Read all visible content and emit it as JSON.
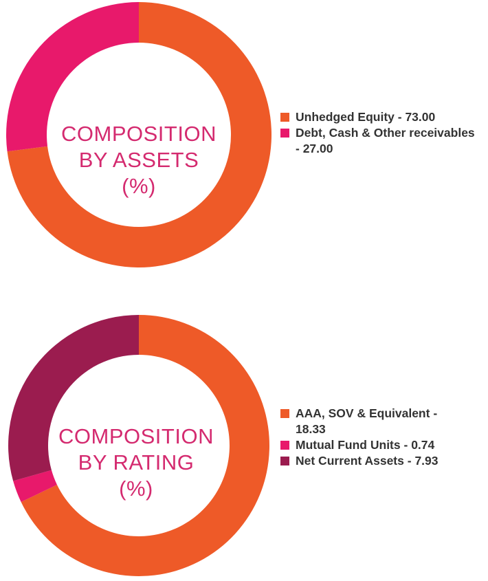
{
  "chart_data": [
    {
      "type": "pie",
      "title": "COMPOSITION BY ASSETS (%)",
      "title_lines": [
        "COMPOSITION",
        "BY ASSETS",
        "(%)"
      ],
      "slices": [
        {
          "label": "Unhedged Equity",
          "value": 73.0,
          "display": "73.00",
          "color": "#ee5a28"
        },
        {
          "label": "Debt, Cash & Other receivables",
          "value": 27.0,
          "display": "27.00",
          "color": "#e8196b"
        }
      ],
      "legend_position": "right"
    },
    {
      "type": "pie",
      "title": "COMPOSITION BY RATING (%)",
      "title_lines": [
        "COMPOSITION",
        "BY RATING",
        "(%)"
      ],
      "slices": [
        {
          "label": "AAA, SOV & Equivalent",
          "value": 18.33,
          "display": "18.33",
          "color": "#ee5a28"
        },
        {
          "label": "Mutual Fund Units",
          "value": 0.74,
          "display": "0.74",
          "color": "#e8196b"
        },
        {
          "label": "Net Current Assets",
          "value": 7.93,
          "display": "7.93",
          "color": "#9b1c4f"
        }
      ],
      "legend_position": "right"
    }
  ]
}
